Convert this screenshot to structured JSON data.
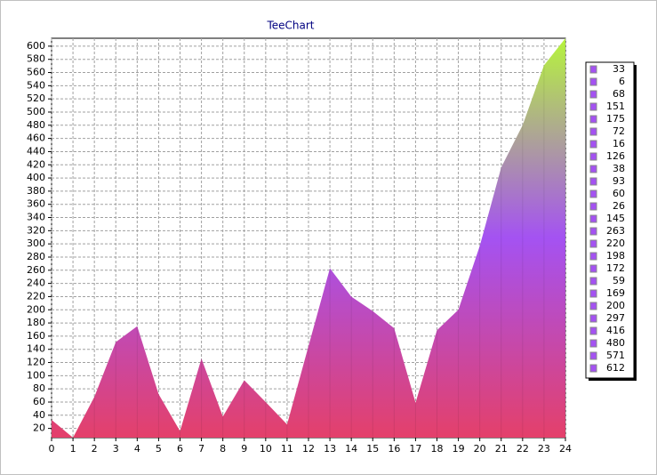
{
  "chart_data": {
    "type": "area",
    "title": "TeeChart",
    "x": [
      0,
      1,
      2,
      3,
      4,
      5,
      6,
      7,
      8,
      9,
      10,
      11,
      12,
      13,
      14,
      15,
      16,
      17,
      18,
      19,
      20,
      21,
      22,
      23,
      24
    ],
    "values": [
      33,
      6,
      68,
      151,
      175,
      72,
      16,
      126,
      38,
      93,
      60,
      26,
      145,
      263,
      220,
      198,
      172,
      59,
      169,
      200,
      297,
      416,
      480,
      571,
      612
    ],
    "gradient": [
      "#e4406a",
      "#a452f2",
      "#b6f43c"
    ],
    "xlim": [
      0,
      24
    ],
    "xticks": [
      0,
      1,
      2,
      3,
      4,
      5,
      6,
      7,
      8,
      9,
      10,
      11,
      12,
      13,
      14,
      15,
      16,
      17,
      18,
      19,
      20,
      21,
      22,
      23,
      24
    ],
    "ylim": [
      6,
      612
    ],
    "yticks": [
      20,
      40,
      60,
      80,
      100,
      120,
      140,
      160,
      180,
      200,
      220,
      240,
      260,
      280,
      300,
      320,
      340,
      360,
      380,
      400,
      420,
      440,
      460,
      480,
      500,
      520,
      540,
      560,
      580,
      600
    ],
    "grid": true,
    "legend": "right"
  }
}
